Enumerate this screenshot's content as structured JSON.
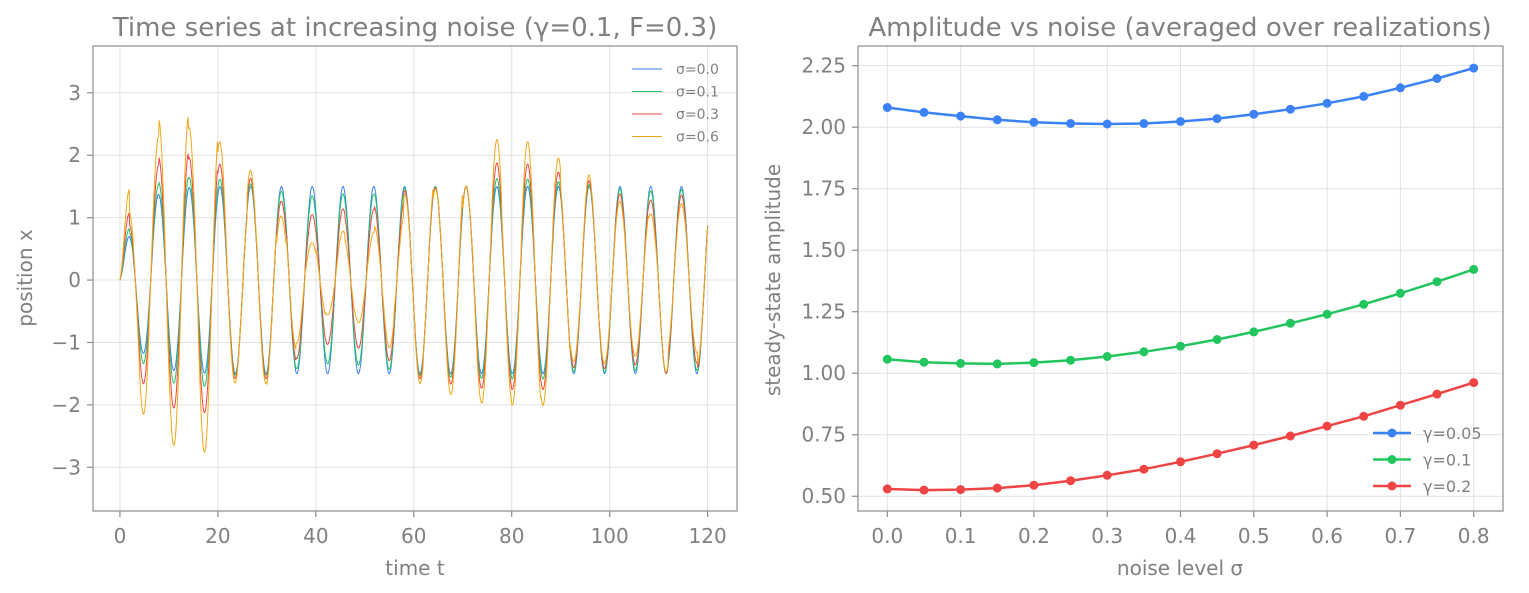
{
  "chart_data": [
    {
      "type": "line",
      "title": "Time series at increasing noise (γ=0.1, F=0.3)",
      "xlabel": "time t",
      "ylabel": "position x",
      "xlim": [
        -5.5,
        126
      ],
      "ylim": [
        -3.7,
        3.75
      ],
      "xticks": [
        0,
        20,
        40,
        60,
        80,
        100,
        120
      ],
      "xtick_labels": [
        "0",
        "20",
        "40",
        "60",
        "80",
        "100",
        "120"
      ],
      "yticks": [
        -3,
        -2,
        -1,
        0,
        1,
        2,
        3
      ],
      "ytick_labels": [
        "−3",
        "−2",
        "−1",
        "0",
        "1",
        "2",
        "3"
      ],
      "grid": true,
      "legend_position": "top-right",
      "series": [
        {
          "name": "σ=0.0",
          "color": "#3b82f6",
          "amplitude": 1.5,
          "omega": 1.0,
          "gamma": 0.1,
          "noise": 0.0,
          "x0": 0,
          "v0": 0
        },
        {
          "name": "σ=0.1",
          "color": "#22c55e",
          "amplitude": 1.5,
          "omega": 1.0,
          "gamma": 0.1,
          "noise": 0.1,
          "x0": 0,
          "v0": 0
        },
        {
          "name": "σ=0.3",
          "color": "#ef4444",
          "amplitude": 1.5,
          "omega": 1.0,
          "gamma": 0.1,
          "noise": 0.3,
          "x0": 0,
          "v0": 0
        },
        {
          "name": "σ=0.6",
          "color": "#f0a818",
          "amplitude": 1.5,
          "omega": 1.0,
          "gamma": 0.1,
          "noise": 0.6,
          "x0": 0,
          "v0": 0
        }
      ],
      "t_range": [
        0,
        120
      ]
    },
    {
      "type": "line",
      "title": "Amplitude vs noise (averaged over realizations)",
      "xlabel": "noise level σ",
      "ylabel": "steady-state amplitude",
      "xlim": [
        -0.04,
        0.84
      ],
      "ylim": [
        0.44,
        2.33
      ],
      "xticks": [
        0.0,
        0.1,
        0.2,
        0.3,
        0.4,
        0.5,
        0.6,
        0.7,
        0.8
      ],
      "xtick_labels": [
        "0.0",
        "0.1",
        "0.2",
        "0.3",
        "0.4",
        "0.5",
        "0.6",
        "0.7",
        "0.8"
      ],
      "yticks": [
        0.5,
        0.75,
        1.0,
        1.25,
        1.5,
        1.75,
        2.0,
        2.25
      ],
      "ytick_labels": [
        "0.50",
        "0.75",
        "1.00",
        "1.25",
        "1.50",
        "1.75",
        "2.00",
        "2.25"
      ],
      "grid": true,
      "legend_position": "bottom-right",
      "x": [
        0.0,
        0.05,
        0.1,
        0.15,
        0.2,
        0.25,
        0.3,
        0.35,
        0.4,
        0.45,
        0.5,
        0.55,
        0.6,
        0.65,
        0.7,
        0.75,
        0.8
      ],
      "series": [
        {
          "name": "γ=0.05",
          "color": "#3b82f6",
          "values": [
            2.08,
            2.06,
            2.045,
            2.03,
            2.02,
            2.015,
            2.013,
            2.015,
            2.023,
            2.035,
            2.053,
            2.073,
            2.097,
            2.125,
            2.16,
            2.198,
            2.24
          ]
        },
        {
          "name": "γ=0.1",
          "color": "#22c55e",
          "values": [
            1.057,
            1.045,
            1.04,
            1.038,
            1.043,
            1.053,
            1.068,
            1.087,
            1.11,
            1.137,
            1.168,
            1.203,
            1.24,
            1.28,
            1.325,
            1.372,
            1.422
          ]
        },
        {
          "name": "γ=0.2",
          "color": "#ef4444",
          "values": [
            0.53,
            0.525,
            0.527,
            0.533,
            0.545,
            0.563,
            0.585,
            0.61,
            0.64,
            0.673,
            0.708,
            0.745,
            0.785,
            0.825,
            0.87,
            0.915,
            0.962
          ]
        }
      ]
    }
  ]
}
